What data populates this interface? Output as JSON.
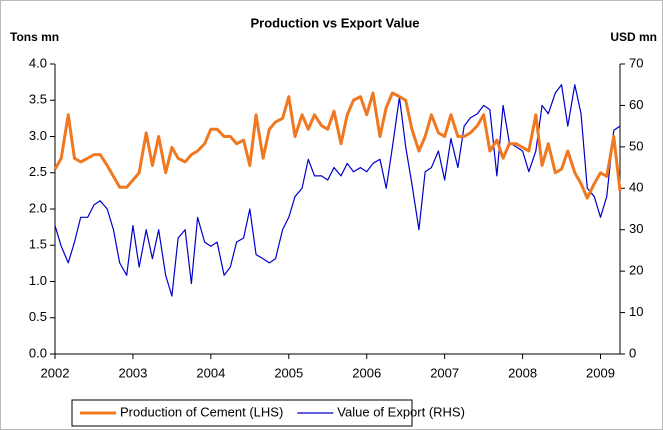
{
  "chart_data": {
    "type": "line",
    "title": "Production vs Export Value",
    "ylabel": "Tons mn",
    "y2label": "USD mn",
    "x": [
      2002,
      2002.08,
      2002.17,
      2002.25,
      2002.33,
      2002.42,
      2002.5,
      2002.58,
      2002.67,
      2002.75,
      2002.83,
      2002.92,
      2003,
      2003.08,
      2003.17,
      2003.25,
      2003.33,
      2003.42,
      2003.5,
      2003.58,
      2003.67,
      2003.75,
      2003.83,
      2003.92,
      2004,
      2004.08,
      2004.17,
      2004.25,
      2004.33,
      2004.42,
      2004.5,
      2004.58,
      2004.67,
      2004.75,
      2004.83,
      2004.92,
      2005,
      2005.08,
      2005.17,
      2005.25,
      2005.33,
      2005.42,
      2005.5,
      2005.58,
      2005.67,
      2005.75,
      2005.83,
      2005.92,
      2006,
      2006.08,
      2006.17,
      2006.25,
      2006.33,
      2006.42,
      2006.5,
      2006.58,
      2006.67,
      2006.75,
      2006.83,
      2006.92,
      2007,
      2007.08,
      2007.17,
      2007.25,
      2007.33,
      2007.42,
      2007.5,
      2007.58,
      2007.67,
      2007.75,
      2007.83,
      2007.92,
      2008,
      2008.08,
      2008.17,
      2008.25,
      2008.33,
      2008.42,
      2008.5,
      2008.58,
      2008.67,
      2008.75,
      2008.83,
      2008.92,
      2009,
      2009.08,
      2009.17,
      2009.25
    ],
    "series": [
      {
        "name": "Production of Cement (LHS)",
        "color": "#f07820",
        "values": [
          2.55,
          2.7,
          3.3,
          2.7,
          2.65,
          2.7,
          2.75,
          2.75,
          2.6,
          2.45,
          2.3,
          2.3,
          2.4,
          2.5,
          3.05,
          2.6,
          3.0,
          2.5,
          2.85,
          2.7,
          2.65,
          2.75,
          2.8,
          2.9,
          3.1,
          3.1,
          3.0,
          3.0,
          2.9,
          2.95,
          2.6,
          3.3,
          2.7,
          3.1,
          3.2,
          3.25,
          3.55,
          3.0,
          3.3,
          3.1,
          3.3,
          3.15,
          3.1,
          3.35,
          2.9,
          3.3,
          3.5,
          3.55,
          3.3,
          3.6,
          3.0,
          3.4,
          3.6,
          3.55,
          3.5,
          3.1,
          2.8,
          3.0,
          3.3,
          3.05,
          3.0,
          3.3,
          3.0,
          3.0,
          3.05,
          3.15,
          3.3,
          2.8,
          2.95,
          2.7,
          2.9,
          2.9,
          2.85,
          2.8,
          3.3,
          2.6,
          2.9,
          2.5,
          2.55,
          2.8,
          2.5,
          2.35,
          2.15,
          2.35,
          2.5,
          2.45,
          3.0,
          2.25
        ]
      },
      {
        "name": "Value of Export (RHS)",
        "color": "#0000cc",
        "axis": "y2",
        "values": [
          31,
          26,
          22,
          27,
          33,
          33,
          36,
          37,
          35,
          30,
          22,
          19,
          31,
          21,
          30,
          23,
          30,
          19,
          14,
          28,
          30,
          17,
          33,
          27,
          26,
          27,
          19,
          21,
          27,
          28,
          35,
          24,
          23,
          22,
          23,
          30,
          33,
          38,
          40,
          47,
          43,
          43,
          42,
          45,
          43,
          46,
          44,
          45,
          44,
          46,
          47,
          40,
          50,
          62,
          50,
          41,
          30,
          44,
          45,
          49,
          42,
          52,
          45,
          55,
          57,
          58,
          60,
          59,
          43,
          60,
          51,
          50,
          49,
          44,
          49,
          60,
          58,
          63,
          65,
          55,
          65,
          58,
          40,
          38,
          33,
          38,
          54,
          55
        ]
      }
    ],
    "xlim": [
      2002,
      2009.25
    ],
    "xticks": [
      2002,
      2003,
      2004,
      2005,
      2006,
      2007,
      2008,
      2009
    ],
    "ylim": [
      0,
      4
    ],
    "yticks": [
      {
        "value": 0,
        "label": "0.0"
      },
      {
        "value": 0.5,
        "label": "0.5"
      },
      {
        "value": 1,
        "label": "1.0"
      },
      {
        "value": 1.5,
        "label": "1.5"
      },
      {
        "value": 2,
        "label": "2.0"
      },
      {
        "value": 2.5,
        "label": "2.5"
      },
      {
        "value": 3,
        "label": "3.0"
      },
      {
        "value": 3.5,
        "label": "3.5"
      },
      {
        "value": 4,
        "label": "4.0"
      }
    ],
    "y2lim": [
      0,
      70
    ],
    "y2ticks": [
      0,
      10,
      20,
      30,
      40,
      50,
      60,
      70
    ],
    "legend": "bottom"
  }
}
